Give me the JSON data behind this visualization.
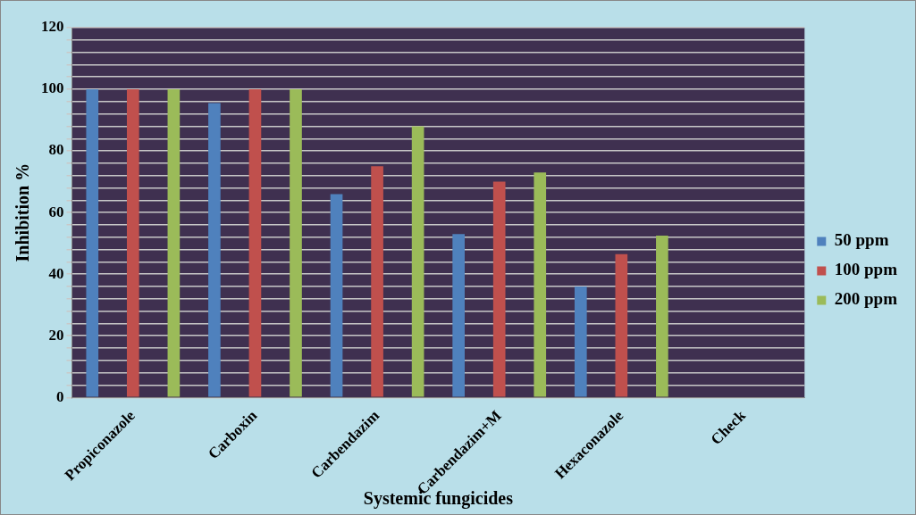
{
  "chart_data": {
    "type": "bar",
    "xlabel": "Systemic fungicides",
    "ylabel": "Inhibition %",
    "categories": [
      "Propiconazole",
      "Carboxin",
      "Carbendazim",
      "Carbendazim+M",
      "Hexaconazole",
      "Check"
    ],
    "series": [
      {
        "name": "50 ppm",
        "color": "#4f81bd",
        "values": [
          100,
          95.5,
          66,
          53,
          36,
          0
        ]
      },
      {
        "name": "100 ppm",
        "color": "#c0504d",
        "values": [
          100,
          100,
          75,
          70,
          46.5,
          0
        ]
      },
      {
        "name": "200 ppm",
        "color": "#9bbb59",
        "values": [
          100,
          100,
          88,
          73,
          52.5,
          0
        ]
      }
    ],
    "ylim": [
      0,
      120
    ],
    "yticks": [
      0,
      {
        "value": 4,
        "label": null
      },
      {
        "value": 8,
        "label": null
      },
      {
        "value": 12,
        "label": null
      },
      {
        "value": 16,
        "label": null
      },
      20,
      {
        "value": 24,
        "label": null
      },
      {
        "value": 28,
        "label": null
      },
      {
        "value": 32,
        "label": null
      },
      {
        "value": 36,
        "label": null
      },
      40,
      {
        "value": 44,
        "label": null
      },
      {
        "value": 48,
        "label": null
      },
      {
        "value": 52,
        "label": null
      },
      {
        "value": 56,
        "label": null
      },
      60,
      {
        "value": 64,
        "label": null
      },
      {
        "value": 68,
        "label": null
      },
      {
        "value": 72,
        "label": null
      },
      {
        "value": 76,
        "label": null
      },
      80,
      {
        "value": 84,
        "label": null
      },
      {
        "value": 88,
        "label": null
      },
      {
        "value": 92,
        "label": null
      },
      {
        "value": 96,
        "label": null
      },
      100,
      {
        "value": 104,
        "label": null
      },
      {
        "value": 108,
        "label": null
      },
      {
        "value": 112,
        "label": null
      },
      {
        "value": 116,
        "label": null
      },
      120
    ],
    "grid": "y",
    "legend": "right"
  }
}
